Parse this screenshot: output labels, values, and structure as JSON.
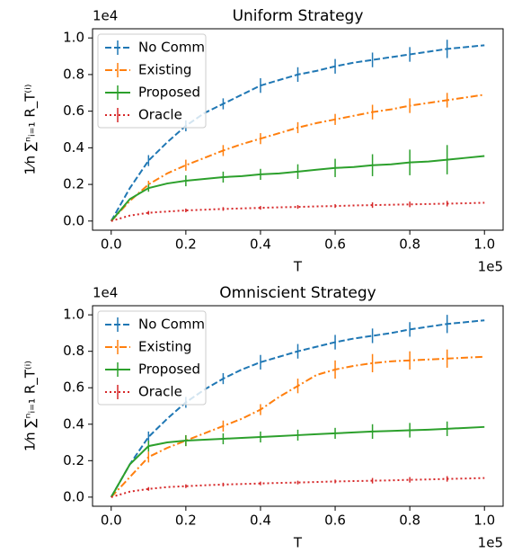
{
  "chart_data": [
    {
      "type": "line",
      "title": "Uniform Strategy",
      "xlabel": "T",
      "ylabel": "1⁄n ∑ⁿᵢ₌₁ R_T⁽ⁱ⁾",
      "x_offset_label": "1e5",
      "y_offset_label": "1e4",
      "legend": "upper left",
      "xlim": [
        -0.05,
        1.05
      ],
      "ylim": [
        -0.05,
        1.05
      ],
      "xticks": [
        {
          "value": 0,
          "label": "0.0"
        },
        0.2,
        0.4,
        0.6,
        0.8,
        {
          "value": 1,
          "label": "1.0"
        }
      ],
      "yticks": [
        {
          "value": 0,
          "label": "0.0"
        },
        0.2,
        0.4,
        0.6,
        0.8,
        {
          "value": 1,
          "label": "1.0"
        }
      ],
      "x": [
        0,
        0.05,
        0.1,
        0.15,
        0.2,
        0.25,
        0.3,
        0.35,
        0.4,
        0.45,
        0.5,
        0.55,
        0.6,
        0.65,
        0.7,
        0.75,
        0.8,
        0.85,
        0.9,
        0.95,
        1.0
      ],
      "series": [
        {
          "name": "No Comm",
          "color": "#1f77b4",
          "linestyle": "--",
          "values": [
            0,
            0.18,
            0.33,
            0.43,
            0.52,
            0.59,
            0.64,
            0.69,
            0.74,
            0.77,
            0.8,
            0.82,
            0.845,
            0.865,
            0.88,
            0.895,
            0.91,
            0.925,
            0.94,
            0.95,
            0.96
          ],
          "errors": [
            null,
            null,
            0.03,
            null,
            0.03,
            null,
            0.03,
            null,
            0.04,
            null,
            0.04,
            null,
            0.04,
            null,
            0.04,
            null,
            0.04,
            null,
            0.05,
            null,
            null
          ]
        },
        {
          "name": "Existing",
          "color": "#ff7f0e",
          "linestyle": "-.",
          "values": [
            0,
            0.11,
            0.2,
            0.26,
            0.305,
            0.345,
            0.385,
            0.42,
            0.45,
            0.48,
            0.51,
            0.535,
            0.555,
            0.575,
            0.595,
            0.61,
            0.63,
            0.645,
            0.66,
            0.675,
            0.69
          ],
          "errors": [
            null,
            null,
            0.02,
            null,
            0.03,
            null,
            0.03,
            null,
            0.03,
            null,
            0.03,
            null,
            0.03,
            null,
            0.04,
            null,
            0.04,
            null,
            0.04,
            null,
            null
          ]
        },
        {
          "name": "Proposed",
          "color": "#2ca02c",
          "linestyle": "-",
          "values": [
            0,
            0.12,
            0.18,
            0.205,
            0.22,
            0.23,
            0.24,
            0.245,
            0.255,
            0.26,
            0.27,
            0.28,
            0.29,
            0.295,
            0.305,
            0.31,
            0.32,
            0.325,
            0.335,
            0.345,
            0.355
          ],
          "errors": [
            null,
            null,
            0.02,
            null,
            0.03,
            null,
            0.03,
            null,
            0.03,
            null,
            0.04,
            null,
            0.05,
            null,
            0.06,
            null,
            0.07,
            null,
            0.08,
            null,
            null
          ]
        },
        {
          "name": "Oracle",
          "color": "#d62728",
          "linestyle": ":",
          "values": [
            0,
            0.03,
            0.045,
            0.052,
            0.058,
            0.062,
            0.066,
            0.069,
            0.072,
            0.075,
            0.077,
            0.08,
            0.082,
            0.085,
            0.087,
            0.089,
            0.091,
            0.093,
            0.095,
            0.097,
            0.1
          ],
          "errors": [
            null,
            null,
            0.01,
            null,
            0.01,
            null,
            0.01,
            null,
            0.01,
            null,
            0.01,
            null,
            0.01,
            null,
            0.015,
            null,
            0.015,
            null,
            0.015,
            null,
            null
          ]
        }
      ]
    },
    {
      "type": "line",
      "title": "Omniscient Strategy",
      "xlabel": "T",
      "ylabel": "1⁄n ∑ⁿᵢ₌₁ R_T⁽ⁱ⁾",
      "x_offset_label": "1e5",
      "y_offset_label": "1e4",
      "legend": "upper left",
      "xlim": [
        -0.05,
        1.05
      ],
      "ylim": [
        -0.05,
        1.05
      ],
      "xticks": [
        {
          "value": 0,
          "label": "0.0"
        },
        0.2,
        0.4,
        0.6,
        0.8,
        {
          "value": 1,
          "label": "1.0"
        }
      ],
      "yticks": [
        {
          "value": 0,
          "label": "0.0"
        },
        0.2,
        0.4,
        0.6,
        0.8,
        {
          "value": 1,
          "label": "1.0"
        }
      ],
      "x": [
        0,
        0.05,
        0.1,
        0.15,
        0.2,
        0.25,
        0.3,
        0.35,
        0.4,
        0.45,
        0.5,
        0.55,
        0.6,
        0.65,
        0.7,
        0.75,
        0.8,
        0.85,
        0.9,
        0.95,
        1.0
      ],
      "series": [
        {
          "name": "No Comm",
          "color": "#1f77b4",
          "linestyle": "--",
          "values": [
            0,
            0.18,
            0.33,
            0.43,
            0.52,
            0.59,
            0.65,
            0.7,
            0.74,
            0.77,
            0.8,
            0.825,
            0.85,
            0.87,
            0.885,
            0.9,
            0.92,
            0.935,
            0.95,
            0.96,
            0.97
          ],
          "errors": [
            null,
            null,
            0.03,
            null,
            0.03,
            null,
            0.03,
            null,
            0.04,
            null,
            0.04,
            null,
            0.04,
            null,
            0.04,
            null,
            0.04,
            null,
            0.05,
            null,
            null
          ]
        },
        {
          "name": "Existing",
          "color": "#ff7f0e",
          "linestyle": "-.",
          "values": [
            0,
            0.11,
            0.22,
            0.27,
            0.31,
            0.35,
            0.39,
            0.43,
            0.48,
            0.55,
            0.61,
            0.67,
            0.7,
            0.72,
            0.735,
            0.745,
            0.75,
            0.755,
            0.76,
            0.765,
            0.77
          ],
          "errors": [
            null,
            null,
            0.03,
            null,
            0.03,
            null,
            0.03,
            null,
            0.03,
            null,
            0.04,
            null,
            0.05,
            null,
            0.05,
            null,
            0.05,
            null,
            0.05,
            null,
            null
          ]
        },
        {
          "name": "Proposed",
          "color": "#2ca02c",
          "linestyle": "-",
          "values": [
            0,
            0.18,
            0.28,
            0.3,
            0.31,
            0.315,
            0.32,
            0.325,
            0.33,
            0.335,
            0.34,
            0.345,
            0.35,
            0.355,
            0.36,
            0.363,
            0.367,
            0.37,
            0.375,
            0.38,
            0.385
          ],
          "errors": [
            null,
            null,
            0.03,
            null,
            0.03,
            null,
            0.03,
            null,
            0.03,
            null,
            0.03,
            null,
            0.03,
            null,
            0.04,
            null,
            0.04,
            null,
            0.04,
            null,
            null
          ]
        },
        {
          "name": "Oracle",
          "color": "#d62728",
          "linestyle": ":",
          "values": [
            0,
            0.03,
            0.045,
            0.055,
            0.06,
            0.065,
            0.069,
            0.072,
            0.075,
            0.078,
            0.08,
            0.083,
            0.086,
            0.088,
            0.09,
            0.092,
            0.095,
            0.097,
            0.1,
            0.102,
            0.105
          ],
          "errors": [
            null,
            null,
            0.01,
            null,
            0.01,
            null,
            0.01,
            null,
            0.01,
            null,
            0.01,
            null,
            0.01,
            null,
            0.015,
            null,
            0.015,
            null,
            0.015,
            null,
            null
          ]
        }
      ]
    }
  ]
}
